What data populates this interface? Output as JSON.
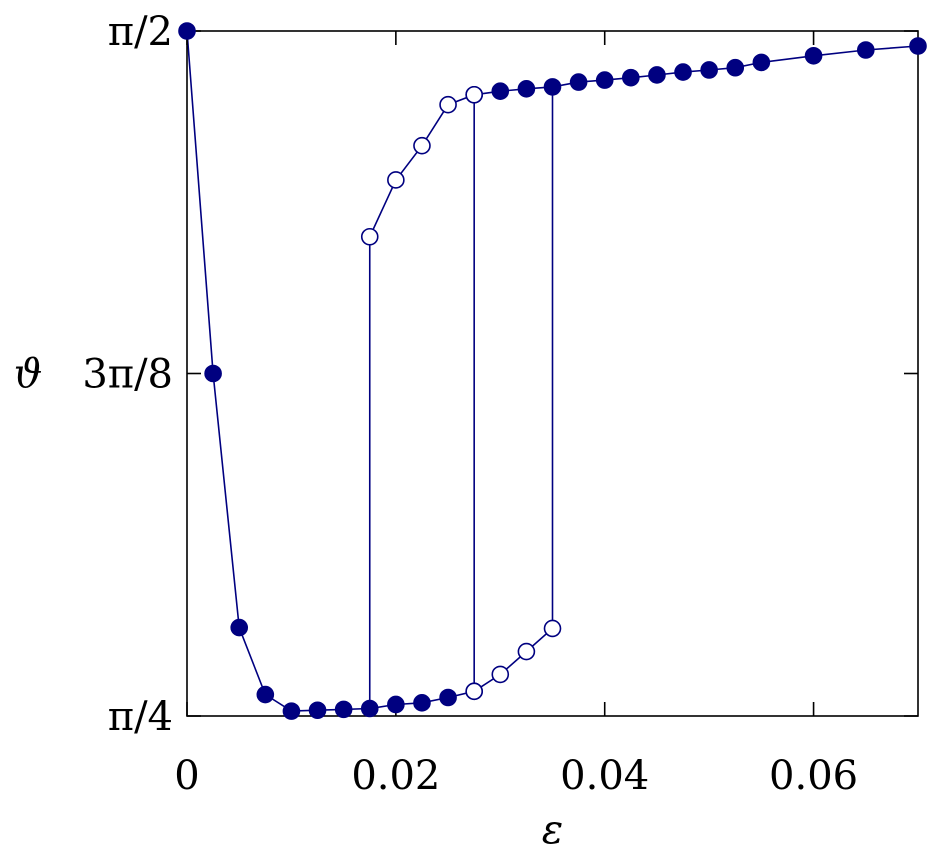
{
  "chart_data": {
    "type": "scatter",
    "title": "",
    "xlabel": "ε",
    "ylabel": "ϑ",
    "xlim": [
      0,
      0.07
    ],
    "ylim": [
      0.7853981634,
      1.5707963268
    ],
    "x_ticks": [
      {
        "value": 0,
        "label": "0"
      },
      {
        "value": 0.02,
        "label": "0.02"
      },
      {
        "value": 0.04,
        "label": "0.04"
      },
      {
        "value": 0.06,
        "label": "0.06"
      }
    ],
    "y_ticks": [
      {
        "value": 0.7853981634,
        "label": "π/4"
      },
      {
        "value": 1.1780972451,
        "label": "3π/8"
      },
      {
        "value": 1.5707963268,
        "label": "π/2"
      }
    ],
    "grid": false,
    "color": "#000080",
    "series": [
      {
        "style": "filled-line",
        "x": [
          0,
          0.0025,
          0.005,
          0.0075,
          0.01,
          0.0125,
          0.015,
          0.0175,
          0.02,
          0.0225,
          0.025,
          0.0275
        ],
        "y": [
          1.5707963268,
          1.1780972451,
          0.8868,
          0.81,
          0.791,
          0.792,
          0.793,
          0.794,
          0.7986,
          0.8005,
          0.8066,
          0.8137
        ]
      },
      {
        "style": "filled-line",
        "x": [
          0.0275,
          0.03,
          0.0325,
          0.035,
          0.0375,
          0.04,
          0.0425,
          0.045,
          0.0475,
          0.05,
          0.0525,
          0.055,
          0.06,
          0.065,
          0.07
        ],
        "y": [
          1.4977,
          1.5018,
          1.5045,
          1.5067,
          1.5122,
          1.5145,
          1.5173,
          1.5204,
          1.5237,
          1.5261,
          1.5287,
          1.5348,
          1.5424,
          1.549,
          1.5536
        ]
      },
      {
        "style": "open-line",
        "x": [
          0.0175,
          0.02,
          0.0225,
          0.025,
          0.0275
        ],
        "y": [
          1.3349,
          1.4,
          1.4393,
          1.4863,
          1.4977
        ]
      },
      {
        "style": "open-line",
        "x": [
          0.0275,
          0.03,
          0.0325,
          0.035
        ],
        "y": [
          0.8137,
          0.8331,
          0.8593,
          0.8858
        ]
      }
    ],
    "vertical_transitions": [
      {
        "x": 0.0175,
        "y_from": 0.794,
        "y_to": 1.3349
      },
      {
        "x": 0.0275,
        "y_from": 0.8137,
        "y_to": 1.4977
      },
      {
        "x": 0.035,
        "y_from": 0.8858,
        "y_to": 1.5067
      }
    ]
  }
}
